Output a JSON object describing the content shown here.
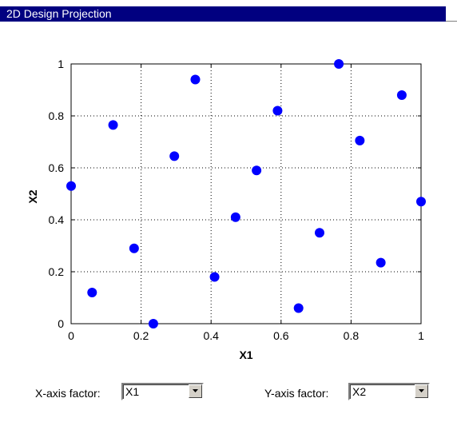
{
  "window": {
    "title": "2D Design Projection"
  },
  "controls": {
    "x_axis_label": "X-axis factor:",
    "x_axis_value": "X1",
    "y_axis_label": "Y-axis factor:",
    "y_axis_value": "X2"
  },
  "icons": {
    "dropdown": "chevron-down-icon"
  },
  "colors": {
    "title_bar": "#010080",
    "points": "#0000ff"
  },
  "chart_data": {
    "type": "scatter",
    "title": "",
    "xlabel": "X1",
    "ylabel": "X2",
    "xlim": [
      0,
      1
    ],
    "ylim": [
      0,
      1
    ],
    "grid": true,
    "x_ticks": [
      "0",
      "0.2",
      "0.4",
      "0.6",
      "0.8",
      "1"
    ],
    "y_ticks": [
      "0",
      "0.2",
      "0.4",
      "0.6",
      "0.8",
      "1"
    ],
    "series": [
      {
        "points": [
          {
            "x": 0.0,
            "y": 0.53
          },
          {
            "x": 0.06,
            "y": 0.12
          },
          {
            "x": 0.12,
            "y": 0.765
          },
          {
            "x": 0.18,
            "y": 0.29
          },
          {
            "x": 0.235,
            "y": 0.0
          },
          {
            "x": 0.295,
            "y": 0.645
          },
          {
            "x": 0.355,
            "y": 0.94
          },
          {
            "x": 0.41,
            "y": 0.18
          },
          {
            "x": 0.47,
            "y": 0.41
          },
          {
            "x": 0.53,
            "y": 0.59
          },
          {
            "x": 0.59,
            "y": 0.82
          },
          {
            "x": 0.65,
            "y": 0.06
          },
          {
            "x": 0.71,
            "y": 0.35
          },
          {
            "x": 0.765,
            "y": 1.0
          },
          {
            "x": 0.825,
            "y": 0.705
          },
          {
            "x": 0.885,
            "y": 0.235
          },
          {
            "x": 0.945,
            "y": 0.88
          },
          {
            "x": 1.0,
            "y": 0.47
          }
        ]
      }
    ]
  }
}
